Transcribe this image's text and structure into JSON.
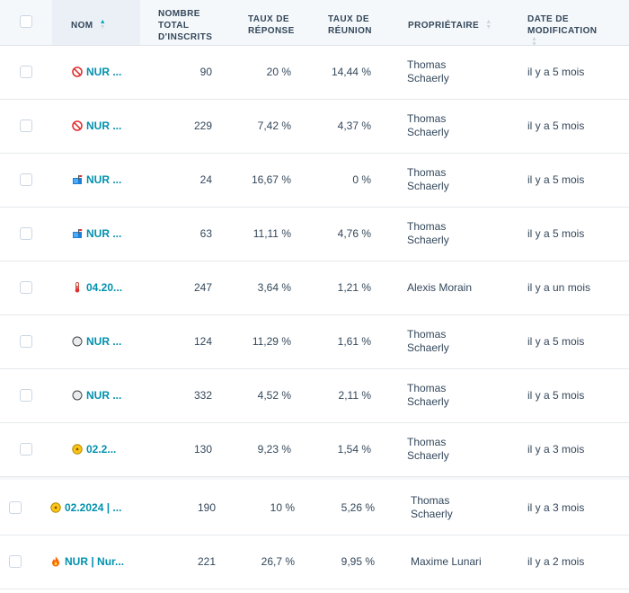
{
  "header": {
    "name": "NOM",
    "total": "NOMBRE TOTAL D'INSCRITS",
    "response": "TAUX DE RÉPONSE",
    "meeting": "TAUX DE RÉUNION",
    "owner": "PROPRIÉTAIRE",
    "modified": "DATE DE MODIFICATION"
  },
  "rows": [
    {
      "icon": "no-entry-icon",
      "name": "NUR ...",
      "total": "90",
      "response": "20 %",
      "meeting": "14,44 %",
      "owner": "Thomas Schaerly",
      "modified": "il y a 5 mois"
    },
    {
      "icon": "no-entry-icon",
      "name": "NUR ...",
      "total": "229",
      "response": "7,42 %",
      "meeting": "4,37 %",
      "owner": "Thomas Schaerly",
      "modified": "il y a 5 mois"
    },
    {
      "icon": "mailbox-icon",
      "name": "NUR ...",
      "total": "24",
      "response": "16,67 %",
      "meeting": "0 %",
      "owner": "Thomas Schaerly",
      "modified": "il y a 5 mois"
    },
    {
      "icon": "mailbox-icon",
      "name": "NUR ...",
      "total": "63",
      "response": "11,11 %",
      "meeting": "4,76 %",
      "owner": "Thomas Schaerly",
      "modified": "il y a 5 mois"
    },
    {
      "icon": "thermometer-icon",
      "name": "04.20...",
      "total": "247",
      "response": "3,64 %",
      "meeting": "1,21 %",
      "owner": "Alexis Morain",
      "modified": "il y a un mois"
    },
    {
      "icon": "white-circle-icon",
      "name": "NUR ...",
      "total": "124",
      "response": "11,29 %",
      "meeting": "1,61 %",
      "owner": "Thomas Schaerly",
      "modified": "il y a 5 mois"
    },
    {
      "icon": "white-circle-icon",
      "name": "NUR ...",
      "total": "332",
      "response": "4,52 %",
      "meeting": "2,11 %",
      "owner": "Thomas Schaerly",
      "modified": "il y a 5 mois"
    },
    {
      "icon": "coin-icon",
      "name": "02.2...",
      "total": "130",
      "response": "9,23 %",
      "meeting": "1,54 %",
      "owner": "Thomas Schaerly",
      "modified": "il y a 3 mois"
    },
    {
      "icon": "coin-icon",
      "name": "02.2024 | ...",
      "total": "190",
      "response": "10 %",
      "meeting": "5,26 %",
      "owner": "Thomas Schaerly",
      "modified": "il y a 3 mois"
    },
    {
      "icon": "fire-icon",
      "name": "NUR | Nur...",
      "total": "221",
      "response": "26,7 %",
      "meeting": "9,95 %",
      "owner": "Maxime Lunari",
      "modified": "il y a 2 mois"
    }
  ]
}
